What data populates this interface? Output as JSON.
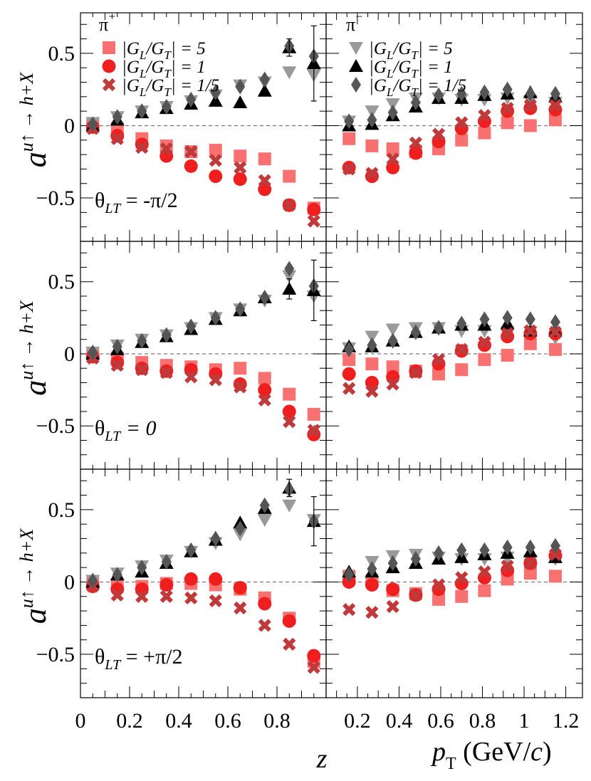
{
  "colors": {
    "pip_r5": "#f87171",
    "pip_r1": "#ef1f1f",
    "pip_r15": "#c0393b",
    "pim_r5": "#9a9a9a",
    "pim_r1": "#000000",
    "pim_r15": "#555555",
    "frame": "#000000",
    "zero_line": "#777777"
  },
  "legends": {
    "pip": {
      "title": "π⁺",
      "entries": [
        {
          "series": "r5",
          "marker": "square",
          "label": "|G_L/G_T| = 5"
        },
        {
          "series": "r1",
          "marker": "circle",
          "label": "|G_L/G_T| = 1"
        },
        {
          "series": "r15",
          "marker": "cross",
          "label": "|G_L/G_T| = 1/5"
        }
      ]
    },
    "pim": {
      "title": "π⁻",
      "entries": [
        {
          "series": "r5",
          "marker": "triangle-down",
          "label": "|G_L/G_T| = 5"
        },
        {
          "series": "r1",
          "marker": "triangle-up",
          "label": "|G_L/G_T| = 1"
        },
        {
          "series": "r15",
          "marker": "diamond",
          "label": "|G_L/G_T| = 1/5"
        }
      ]
    }
  },
  "axes": {
    "ylabel": "a^{u↑ → h+X}",
    "z_label": "z",
    "pt_label": "p_T (GeV/c)",
    "y_ticks": [
      {
        "v": 0.5,
        "t": "0.5"
      },
      {
        "v": 0,
        "t": "0"
      },
      {
        "v": -0.5,
        "t": "−0.5"
      }
    ],
    "z_ticks": [
      {
        "v": 0,
        "t": "0"
      },
      {
        "v": 0.2,
        "t": "0.2"
      },
      {
        "v": 0.4,
        "t": "0.4"
      },
      {
        "v": 0.6,
        "t": "0.6"
      },
      {
        "v": 0.8,
        "t": "0.8"
      }
    ],
    "pt_ticks": [
      {
        "v": 0.2,
        "t": "0.2"
      },
      {
        "v": 0.4,
        "t": "0.4"
      },
      {
        "v": 0.6,
        "t": "0.6"
      },
      {
        "v": 0.8,
        "t": "0.8"
      },
      {
        "v": 1.0,
        "t": "1"
      },
      {
        "v": 1.2,
        "t": "1.2"
      }
    ]
  },
  "chart_data": {
    "type": "scatter",
    "title": "",
    "xlabel_left": "z",
    "xlabel_right": "p_T (GeV/c)",
    "ylabel": "a^{u↑ → h+X}",
    "z_range": [
      0,
      1.0
    ],
    "pt_range": [
      0.05,
      1.28
    ],
    "ylim": [
      -0.8,
      0.78
    ],
    "z_bins": [
      0.05,
      0.15,
      0.25,
      0.35,
      0.45,
      0.55,
      0.65,
      0.75,
      0.85,
      0.95
    ],
    "pt_bins": [
      0.16,
      0.27,
      0.37,
      0.48,
      0.59,
      0.7,
      0.81,
      0.92,
      1.03,
      1.15
    ],
    "rows": [
      {
        "theta_label": "θ_LT = -π/2",
        "z": {
          "pip": {
            "r5": [
              0.01,
              -0.02,
              -0.09,
              -0.14,
              -0.18,
              -0.17,
              -0.21,
              -0.23,
              -0.35,
              -0.57
            ],
            "r1": [
              -0.01,
              -0.07,
              -0.13,
              -0.21,
              -0.28,
              -0.35,
              -0.37,
              -0.44,
              -0.55,
              -0.58
            ],
            "r15": [
              -0.02,
              -0.09,
              -0.15,
              -0.16,
              -0.18,
              -0.24,
              -0.29,
              -0.38,
              -0.55,
              -0.66
            ]
          },
          "pim": {
            "r5": [
              0.02,
              0.06,
              0.1,
              0.13,
              0.17,
              0.21,
              0.28,
              0.3,
              0.37,
              0.35
            ],
            "r1": [
              0.0,
              0.04,
              0.09,
              0.12,
              0.15,
              0.17,
              0.16,
              0.24,
              0.54,
              0.43
            ],
            "r15": [
              0.01,
              0.06,
              0.1,
              0.13,
              0.18,
              0.23,
              0.27,
              0.32,
              0.55,
              0.48
            ]
          }
        },
        "pt": {
          "pip": {
            "r5": [
              -0.09,
              -0.14,
              -0.16,
              -0.18,
              -0.16,
              -0.1,
              -0.05,
              0.02,
              0.0,
              0.04
            ],
            "r1": [
              -0.29,
              -0.35,
              -0.29,
              -0.19,
              -0.11,
              -0.02,
              0.03,
              0.1,
              0.12,
              0.11
            ],
            "r15": [
              -0.3,
              -0.33,
              -0.23,
              -0.12,
              -0.06,
              0.02,
              0.07,
              0.12,
              0.14,
              0.14
            ]
          },
          "pim": {
            "r5": [
              0.03,
              0.1,
              0.15,
              0.19,
              0.19,
              0.18,
              0.18,
              0.19,
              0.17,
              0.16
            ],
            "r1": [
              0.0,
              0.01,
              0.07,
              0.13,
              0.19,
              0.19,
              0.21,
              0.22,
              0.23,
              0.2
            ],
            "r15": [
              0.03,
              0.04,
              0.09,
              0.16,
              0.21,
              0.22,
              0.23,
              0.25,
              0.22,
              0.22
            ]
          }
        },
        "z_errors": {
          "pim": [
            {
              "i": 8,
              "e": 0.06
            },
            {
              "i": 9,
              "e": 0.26
            }
          ]
        }
      },
      {
        "theta_label": "θ_LT = 0",
        "z": {
          "pip": {
            "r5": [
              -0.01,
              -0.03,
              -0.06,
              -0.08,
              -0.09,
              -0.11,
              -0.1,
              -0.17,
              -0.28,
              -0.42
            ],
            "r1": [
              -0.02,
              -0.06,
              -0.1,
              -0.12,
              -0.11,
              -0.14,
              -0.21,
              -0.25,
              -0.4,
              -0.56
            ],
            "r15": [
              -0.03,
              -0.08,
              -0.11,
              -0.13,
              -0.16,
              -0.18,
              -0.23,
              -0.32,
              -0.47,
              -0.53
            ]
          },
          "pim": {
            "r5": [
              0.01,
              0.06,
              0.1,
              0.13,
              0.18,
              0.25,
              0.31,
              0.37,
              0.54,
              0.4
            ],
            "r1": [
              0.0,
              0.03,
              0.08,
              0.12,
              0.17,
              0.24,
              0.3,
              0.39,
              0.45,
              0.44
            ],
            "r15": [
              0.01,
              0.05,
              0.09,
              0.13,
              0.19,
              0.25,
              0.31,
              0.39,
              0.59,
              0.47
            ]
          }
        },
        "pt": {
          "pip": {
            "r5": [
              -0.04,
              -0.07,
              -0.09,
              -0.12,
              -0.14,
              -0.11,
              -0.04,
              -0.01,
              0.07,
              0.03
            ],
            "r1": [
              -0.14,
              -0.2,
              -0.16,
              -0.12,
              -0.07,
              0.02,
              0.06,
              0.12,
              0.14,
              0.14
            ],
            "r15": [
              -0.24,
              -0.26,
              -0.21,
              -0.13,
              -0.04,
              0.03,
              0.08,
              0.14,
              0.16,
              0.15
            ]
          },
          "pim": {
            "r5": [
              0.04,
              0.12,
              0.17,
              0.18,
              0.18,
              0.16,
              0.16,
              0.15,
              0.15,
              0.11
            ],
            "r1": [
              0.05,
              0.05,
              0.09,
              0.15,
              0.18,
              0.2,
              0.2,
              0.21,
              0.16,
              0.16
            ],
            "r15": [
              0.03,
              0.06,
              0.09,
              0.15,
              0.18,
              0.21,
              0.24,
              0.25,
              0.24,
              0.22
            ]
          }
        },
        "z_errors": {
          "pim": [
            {
              "i": 8,
              "e": 0.07
            },
            {
              "i": 9,
              "e": 0.21
            }
          ]
        }
      },
      {
        "theta_label": "θ_LT = +π/2",
        "z": {
          "pip": {
            "r5": [
              -0.01,
              -0.02,
              -0.03,
              -0.01,
              -0.01,
              -0.02,
              -0.05,
              -0.11,
              -0.25,
              -0.55
            ],
            "r1": [
              -0.03,
              -0.05,
              -0.05,
              -0.02,
              0.02,
              0.02,
              -0.04,
              -0.15,
              -0.27,
              -0.51
            ],
            "r15": [
              -0.03,
              -0.09,
              -0.1,
              -0.1,
              -0.11,
              -0.13,
              -0.18,
              -0.3,
              -0.43,
              -0.59
            ]
          },
          "pim": {
            "r5": [
              0.01,
              0.06,
              0.11,
              0.15,
              0.21,
              0.27,
              0.33,
              0.43,
              0.53,
              0.43
            ],
            "r1": [
              0.0,
              0.05,
              0.07,
              0.13,
              0.21,
              0.29,
              0.41,
              0.51,
              0.65,
              0.42
            ],
            "r15": [
              0.01,
              0.05,
              0.1,
              0.14,
              0.22,
              0.3,
              0.37,
              0.53,
              0.64,
              0.42
            ]
          }
        },
        "pt": {
          "pip": {
            "r5": [
              0.04,
              0.01,
              -0.06,
              -0.08,
              -0.12,
              -0.1,
              -0.06,
              0.02,
              0.06,
              0.04
            ],
            "r1": [
              0.0,
              -0.02,
              -0.05,
              -0.09,
              -0.05,
              -0.01,
              0.03,
              0.08,
              0.13,
              0.18
            ],
            "r15": [
              -0.19,
              -0.21,
              -0.17,
              -0.09,
              -0.02,
              0.03,
              0.07,
              0.11,
              0.13,
              0.19
            ]
          },
          "pim": {
            "r5": [
              0.03,
              0.14,
              0.18,
              0.19,
              0.17,
              0.16,
              0.16,
              0.17,
              0.15,
              0.16
            ],
            "r1": [
              0.07,
              0.07,
              0.1,
              0.13,
              0.16,
              0.17,
              0.19,
              0.2,
              0.21,
              0.17
            ],
            "r15": [
              0.05,
              0.09,
              0.13,
              0.16,
              0.2,
              0.22,
              0.22,
              0.24,
              0.24,
              0.25
            ]
          }
        },
        "z_errors": {
          "pim": [
            {
              "i": 8,
              "e": 0.06
            },
            {
              "i": 9,
              "e": 0.17
            }
          ]
        }
      }
    ]
  }
}
